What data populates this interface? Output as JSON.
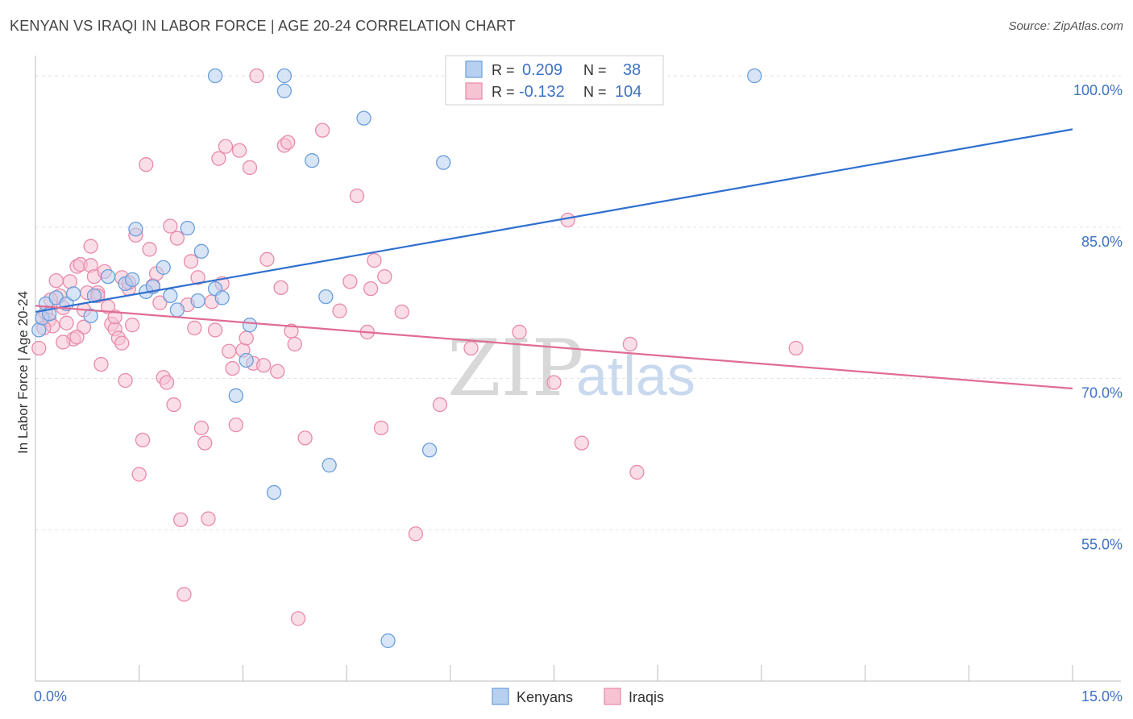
{
  "title": "KENYAN VS IRAQI IN LABOR FORCE | AGE 20-24 CORRELATION CHART",
  "source": "Source: ZipAtlas.com",
  "watermark": {
    "zip": "ZIP",
    "atlas": "atlas"
  },
  "chart_data": {
    "type": "scatter",
    "xlabel": "",
    "ylabel": "In Labor Force | Age 20-24",
    "xlim": [
      0,
      15
    ],
    "ylim": [
      40,
      102
    ],
    "x_tick_labels": [
      "0.0%",
      "15.0%"
    ],
    "y_ticks": [
      55,
      70,
      85,
      100
    ],
    "y_tick_labels": [
      "55.0%",
      "70.0%",
      "85.0%",
      "100.0%"
    ],
    "grid": true,
    "legend": {
      "position": "top-center",
      "entries": [
        {
          "name": "Kenyans",
          "r_label": "R =",
          "r_value": "0.209",
          "n_label": "N =",
          "n_value": "38"
        },
        {
          "name": "Iraqis",
          "r_label": "R =",
          "r_value": "-0.132",
          "n_label": "N =",
          "n_value": "104"
        }
      ]
    },
    "series": [
      {
        "name": "Kenyans",
        "color": "#6a9fdc",
        "fill": "#b7d0f0",
        "trend": {
          "x": [
            0,
            15
          ],
          "y": [
            76.6,
            94.7
          ],
          "color": "#2f6fd0"
        },
        "points": [
          [
            0.05,
            74.8
          ],
          [
            0.1,
            76.0
          ],
          [
            0.15,
            77.4
          ],
          [
            0.2,
            76.4
          ],
          [
            0.3,
            78.0
          ],
          [
            0.45,
            77.4
          ],
          [
            0.55,
            78.4
          ],
          [
            0.8,
            76.2
          ],
          [
            0.85,
            78.2
          ],
          [
            1.05,
            80.1
          ],
          [
            1.3,
            79.4
          ],
          [
            1.4,
            79.8
          ],
          [
            1.45,
            84.8
          ],
          [
            1.6,
            78.6
          ],
          [
            1.7,
            79.1
          ],
          [
            1.85,
            81.0
          ],
          [
            1.95,
            78.2
          ],
          [
            2.05,
            76.8
          ],
          [
            2.2,
            84.9
          ],
          [
            2.35,
            77.7
          ],
          [
            2.4,
            82.6
          ],
          [
            2.6,
            78.9
          ],
          [
            2.7,
            78.0
          ],
          [
            2.9,
            68.3
          ],
          [
            3.05,
            71.8
          ],
          [
            3.1,
            75.3
          ],
          [
            3.45,
            58.7
          ],
          [
            2.6,
            100.0
          ],
          [
            3.6,
            100.0
          ],
          [
            3.6,
            98.5
          ],
          [
            4.0,
            91.6
          ],
          [
            4.2,
            78.1
          ],
          [
            4.25,
            61.4
          ],
          [
            4.75,
            95.8
          ],
          [
            5.1,
            44.0
          ],
          [
            5.7,
            62.9
          ],
          [
            5.9,
            91.4
          ],
          [
            10.4,
            100.0
          ]
        ]
      },
      {
        "name": "Iraqis",
        "color": "#e98aa8",
        "fill": "#f6c3d3",
        "trend": {
          "x": [
            0,
            15
          ],
          "y": [
            77.2,
            69.0
          ],
          "color": "#e06c94"
        },
        "points": [
          [
            0.05,
            73.0
          ],
          [
            0.1,
            76.0
          ],
          [
            0.15,
            76.5
          ],
          [
            0.2,
            75.8
          ],
          [
            0.25,
            75.2
          ],
          [
            0.3,
            79.7
          ],
          [
            0.35,
            78.2
          ],
          [
            0.4,
            77.0
          ],
          [
            0.45,
            75.5
          ],
          [
            0.5,
            79.6
          ],
          [
            0.55,
            73.9
          ],
          [
            0.6,
            81.1
          ],
          [
            0.65,
            81.3
          ],
          [
            0.7,
            75.1
          ],
          [
            0.75,
            78.5
          ],
          [
            0.8,
            83.1
          ],
          [
            0.8,
            81.2
          ],
          [
            0.85,
            80.1
          ],
          [
            0.9,
            78.5
          ],
          [
            0.95,
            71.4
          ],
          [
            1.0,
            80.6
          ],
          [
            1.05,
            77.1
          ],
          [
            1.1,
            75.4
          ],
          [
            1.15,
            74.9
          ],
          [
            1.2,
            74.0
          ],
          [
            1.25,
            80.0
          ],
          [
            1.3,
            69.8
          ],
          [
            1.35,
            78.9
          ],
          [
            1.4,
            75.3
          ],
          [
            1.45,
            84.2
          ],
          [
            1.5,
            60.5
          ],
          [
            1.55,
            63.9
          ],
          [
            1.6,
            91.2
          ],
          [
            1.65,
            82.8
          ],
          [
            1.7,
            79.2
          ],
          [
            1.75,
            80.4
          ],
          [
            1.8,
            77.5
          ],
          [
            1.85,
            70.1
          ],
          [
            1.9,
            69.6
          ],
          [
            1.95,
            85.1
          ],
          [
            2.0,
            67.4
          ],
          [
            2.05,
            83.9
          ],
          [
            2.1,
            56.0
          ],
          [
            2.15,
            48.6
          ],
          [
            2.2,
            77.3
          ],
          [
            2.25,
            81.6
          ],
          [
            2.3,
            75.0
          ],
          [
            2.35,
            80.0
          ],
          [
            2.4,
            65.1
          ],
          [
            2.45,
            63.6
          ],
          [
            2.5,
            56.1
          ],
          [
            2.55,
            77.6
          ],
          [
            2.6,
            74.8
          ],
          [
            2.65,
            91.8
          ],
          [
            2.7,
            79.4
          ],
          [
            2.75,
            93.0
          ],
          [
            2.8,
            72.7
          ],
          [
            2.85,
            71.0
          ],
          [
            2.9,
            65.4
          ],
          [
            2.95,
            92.6
          ],
          [
            3.0,
            72.8
          ],
          [
            3.05,
            74.0
          ],
          [
            3.1,
            90.9
          ],
          [
            3.15,
            71.5
          ],
          [
            3.2,
            100.0
          ],
          [
            3.3,
            71.3
          ],
          [
            3.35,
            81.8
          ],
          [
            3.5,
            70.7
          ],
          [
            3.55,
            79.0
          ],
          [
            3.6,
            93.1
          ],
          [
            3.65,
            93.4
          ],
          [
            3.7,
            74.7
          ],
          [
            3.75,
            73.4
          ],
          [
            3.8,
            46.2
          ],
          [
            3.9,
            64.1
          ],
          [
            4.15,
            94.6
          ],
          [
            4.4,
            76.7
          ],
          [
            4.55,
            79.6
          ],
          [
            4.65,
            88.1
          ],
          [
            4.8,
            74.6
          ],
          [
            4.85,
            78.9
          ],
          [
            4.9,
            81.7
          ],
          [
            5.0,
            65.1
          ],
          [
            5.05,
            80.1
          ],
          [
            5.3,
            76.6
          ],
          [
            5.5,
            54.6
          ],
          [
            5.85,
            67.4
          ],
          [
            6.3,
            73.0
          ],
          [
            7.0,
            74.6
          ],
          [
            7.5,
            69.6
          ],
          [
            7.7,
            85.7
          ],
          [
            7.9,
            63.6
          ],
          [
            8.6,
            73.4
          ],
          [
            8.7,
            60.7
          ],
          [
            11.0,
            73.0
          ],
          [
            0.12,
            75.0
          ],
          [
            0.22,
            77.8
          ],
          [
            0.4,
            73.6
          ],
          [
            0.6,
            74.1
          ],
          [
            0.7,
            76.8
          ],
          [
            0.9,
            78.2
          ],
          [
            1.15,
            76.1
          ],
          [
            1.25,
            73.5
          ],
          [
            1.35,
            79.5
          ]
        ]
      }
    ]
  }
}
